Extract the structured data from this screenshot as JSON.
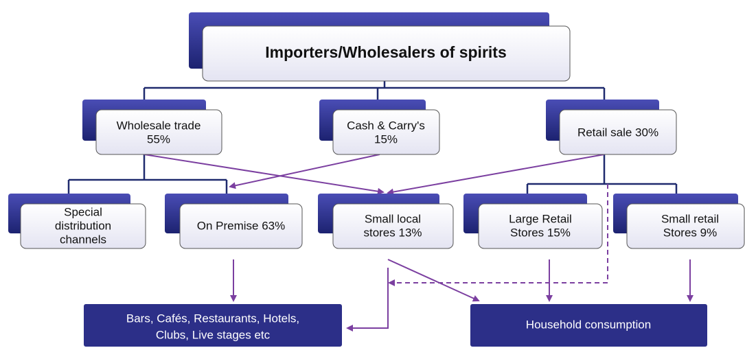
{
  "nodes": [
    {
      "lines": [
        "Importers/Wholesalers of spirits"
      ]
    },
    {
      "lines": [
        "Wholesale trade",
        "55%"
      ]
    },
    {
      "lines": [
        "Cash & Carry's",
        "15%"
      ]
    },
    {
      "lines": [
        "Retail sale 30%"
      ]
    },
    {
      "lines": [
        "Special",
        "distribution",
        "channels"
      ]
    },
    {
      "lines": [
        "On Premise 63%"
      ]
    },
    {
      "lines": [
        "Small local",
        "stores 13%"
      ]
    },
    {
      "lines": [
        "Large Retail",
        "Stores 15%"
      ]
    },
    {
      "lines": [
        "Small retail",
        "Stores 9%"
      ]
    },
    {
      "lines": [
        "Bars, Cafés, Restaurants, Hotels,",
        "Clubs, Live stages etc"
      ]
    },
    {
      "lines": [
        "Household consumption"
      ]
    }
  ]
}
